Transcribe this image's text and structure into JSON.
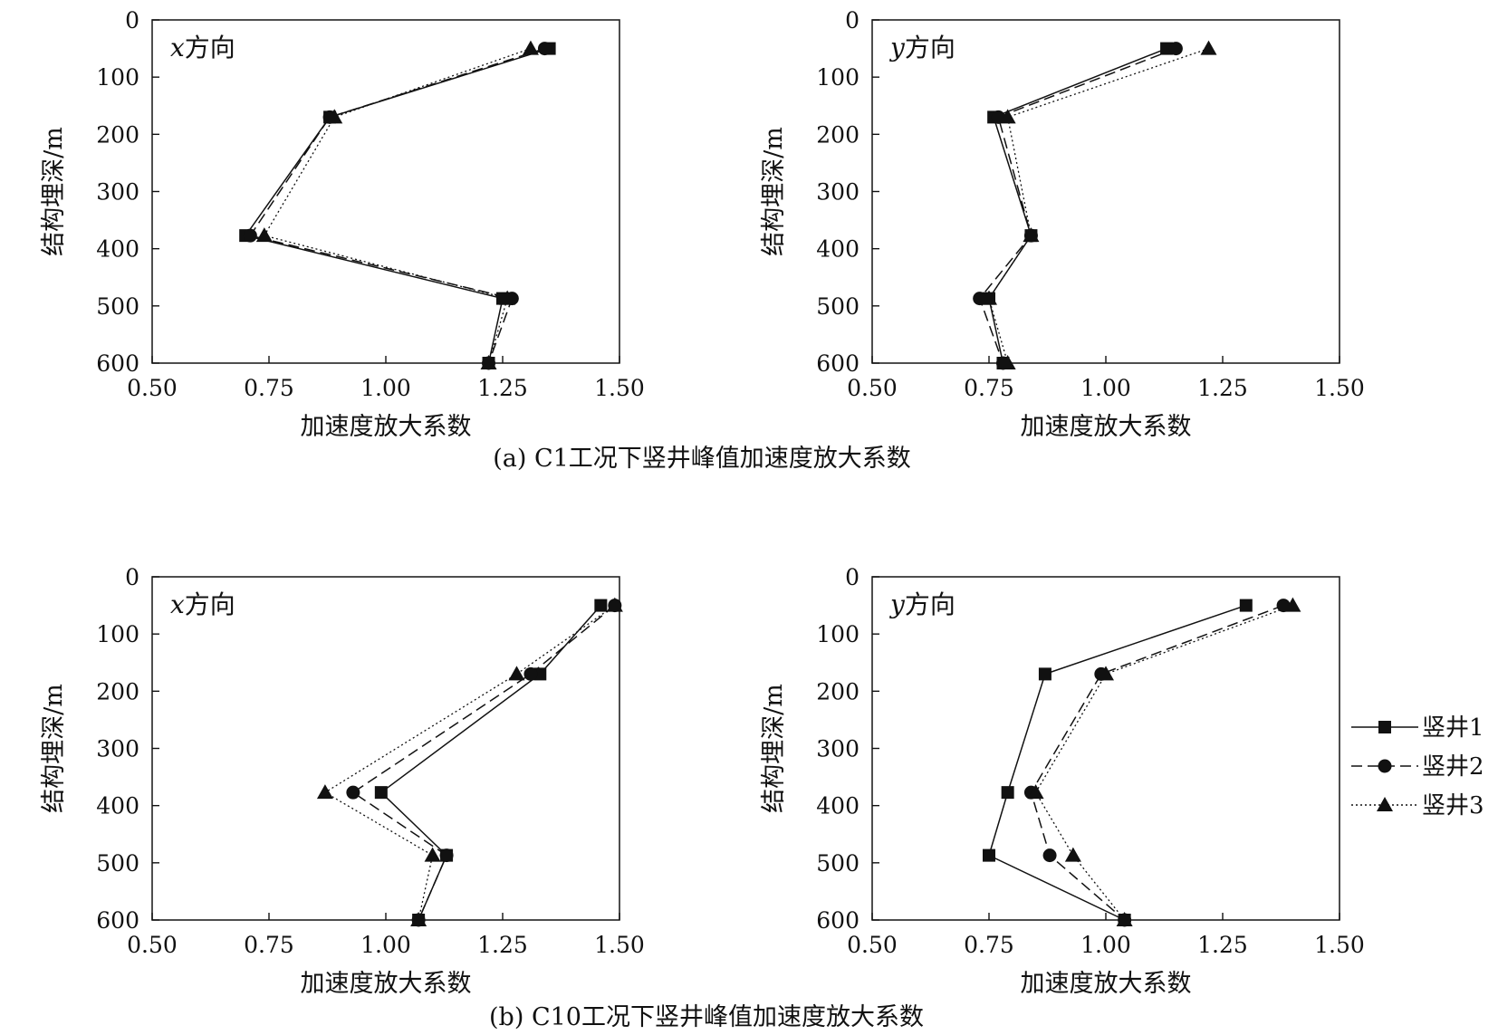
{
  "chart_data": [
    {
      "type": "line",
      "group": "C1",
      "panel_label": "x方向",
      "xlabel": "加速度放大系数",
      "ylabel": "结构埋深/m",
      "xlim": [
        0.5,
        1.5
      ],
      "ylim": [
        0,
        600
      ],
      "y_inverted": true,
      "x_ticks": [
        "0.50",
        "0.75",
        "1.00",
        "1.25",
        "1.50"
      ],
      "y_ticks": [
        "0",
        "100",
        "200",
        "300",
        "400",
        "500",
        "600"
      ],
      "series": [
        {
          "name": "竖井1",
          "marker": "square",
          "line": "solid",
          "points": [
            {
              "x": 1.35,
              "y": 50
            },
            {
              "x": 0.88,
              "y": 170
            },
            {
              "x": 0.7,
              "y": 377
            },
            {
              "x": 1.25,
              "y": 487
            },
            {
              "x": 1.22,
              "y": 600
            }
          ]
        },
        {
          "name": "竖井2",
          "marker": "circle",
          "line": "dashed",
          "points": [
            {
              "x": 1.34,
              "y": 50
            },
            {
              "x": 0.88,
              "y": 170
            },
            {
              "x": 0.71,
              "y": 377
            },
            {
              "x": 1.27,
              "y": 487
            },
            {
              "x": 1.22,
              "y": 600
            }
          ]
        },
        {
          "name": "竖井3",
          "marker": "triangle",
          "line": "dotted",
          "points": [
            {
              "x": 1.31,
              "y": 50
            },
            {
              "x": 0.89,
              "y": 170
            },
            {
              "x": 0.74,
              "y": 377
            },
            {
              "x": 1.26,
              "y": 487
            },
            {
              "x": 1.22,
              "y": 600
            }
          ]
        }
      ]
    },
    {
      "type": "line",
      "group": "C1",
      "panel_label": "y方向",
      "xlabel": "加速度放大系数",
      "ylabel": "结构埋深/m",
      "xlim": [
        0.5,
        1.5
      ],
      "ylim": [
        0,
        600
      ],
      "y_inverted": true,
      "x_ticks": [
        "0.50",
        "0.75",
        "1.00",
        "1.25",
        "1.50"
      ],
      "y_ticks": [
        "0",
        "100",
        "200",
        "300",
        "400",
        "500",
        "600"
      ],
      "series": [
        {
          "name": "竖井1",
          "marker": "square",
          "line": "solid",
          "points": [
            {
              "x": 1.13,
              "y": 50
            },
            {
              "x": 0.76,
              "y": 170
            },
            {
              "x": 0.84,
              "y": 377
            },
            {
              "x": 0.75,
              "y": 487
            },
            {
              "x": 0.78,
              "y": 600
            }
          ]
        },
        {
          "name": "竖井2",
          "marker": "circle",
          "line": "dashed",
          "points": [
            {
              "x": 1.15,
              "y": 50
            },
            {
              "x": 0.77,
              "y": 170
            },
            {
              "x": 0.84,
              "y": 377
            },
            {
              "x": 0.73,
              "y": 487
            },
            {
              "x": 0.78,
              "y": 600
            }
          ]
        },
        {
          "name": "竖井3",
          "marker": "triangle",
          "line": "dotted",
          "points": [
            {
              "x": 1.22,
              "y": 50
            },
            {
              "x": 0.79,
              "y": 170
            },
            {
              "x": 0.84,
              "y": 377
            },
            {
              "x": 0.75,
              "y": 487
            },
            {
              "x": 0.79,
              "y": 600
            }
          ]
        }
      ]
    },
    {
      "type": "line",
      "group": "C10",
      "panel_label": "x方向",
      "xlabel": "加速度放大系数",
      "ylabel": "结构埋深/m",
      "xlim": [
        0.5,
        1.5
      ],
      "ylim": [
        0,
        600
      ],
      "y_inverted": true,
      "x_ticks": [
        "0.50",
        "0.75",
        "1.00",
        "1.25",
        "1.50"
      ],
      "y_ticks": [
        "0",
        "100",
        "200",
        "300",
        "400",
        "500",
        "600"
      ],
      "series": [
        {
          "name": "竖井1",
          "marker": "square",
          "line": "solid",
          "points": [
            {
              "x": 1.46,
              "y": 50
            },
            {
              "x": 1.33,
              "y": 170
            },
            {
              "x": 0.99,
              "y": 377
            },
            {
              "x": 1.13,
              "y": 487
            },
            {
              "x": 1.07,
              "y": 600
            }
          ]
        },
        {
          "name": "竖井2",
          "marker": "circle",
          "line": "dashed",
          "points": [
            {
              "x": 1.49,
              "y": 50
            },
            {
              "x": 1.31,
              "y": 170
            },
            {
              "x": 0.93,
              "y": 377
            },
            {
              "x": 1.13,
              "y": 487
            },
            {
              "x": 1.07,
              "y": 600
            }
          ]
        },
        {
          "name": "竖井3",
          "marker": "triangle",
          "line": "dotted",
          "points": [
            {
              "x": 1.49,
              "y": 50
            },
            {
              "x": 1.28,
              "y": 170
            },
            {
              "x": 0.87,
              "y": 377
            },
            {
              "x": 1.1,
              "y": 487
            },
            {
              "x": 1.07,
              "y": 600
            }
          ]
        }
      ]
    },
    {
      "type": "line",
      "group": "C10",
      "panel_label": "y方向",
      "xlabel": "加速度放大系数",
      "ylabel": "结构埋深/m",
      "xlim": [
        0.5,
        1.5
      ],
      "ylim": [
        0,
        600
      ],
      "y_inverted": true,
      "x_ticks": [
        "0.50",
        "0.75",
        "1.00",
        "1.25",
        "1.50"
      ],
      "y_ticks": [
        "0",
        "100",
        "200",
        "300",
        "400",
        "500",
        "600"
      ],
      "series": [
        {
          "name": "竖井1",
          "marker": "square",
          "line": "solid",
          "points": [
            {
              "x": 1.3,
              "y": 50
            },
            {
              "x": 0.87,
              "y": 170
            },
            {
              "x": 0.79,
              "y": 377
            },
            {
              "x": 0.75,
              "y": 487
            },
            {
              "x": 1.04,
              "y": 600
            }
          ]
        },
        {
          "name": "竖井2",
          "marker": "circle",
          "line": "dashed",
          "points": [
            {
              "x": 1.38,
              "y": 50
            },
            {
              "x": 0.99,
              "y": 170
            },
            {
              "x": 0.84,
              "y": 377
            },
            {
              "x": 0.88,
              "y": 487
            },
            {
              "x": 1.04,
              "y": 600
            }
          ]
        },
        {
          "name": "竖井3",
          "marker": "triangle",
          "line": "dotted",
          "points": [
            {
              "x": 1.4,
              "y": 50
            },
            {
              "x": 1.0,
              "y": 170
            },
            {
              "x": 0.85,
              "y": 377
            },
            {
              "x": 0.93,
              "y": 487
            },
            {
              "x": 1.04,
              "y": 600
            }
          ]
        }
      ]
    }
  ],
  "captions": {
    "a": "(a) C1工况下竖井峰值加速度放大系数",
    "b": "(b) C10工况下竖井峰值加速度放大系数"
  },
  "legend": {
    "placement": "right-bottom",
    "items": [
      {
        "name": "竖井1",
        "marker": "square",
        "line": "solid"
      },
      {
        "name": "竖井2",
        "marker": "circle",
        "line": "dashed"
      },
      {
        "name": "竖井3",
        "marker": "triangle",
        "line": "dotted"
      }
    ]
  },
  "colors": {
    "ink": "#111111",
    "background": "#ffffff"
  }
}
